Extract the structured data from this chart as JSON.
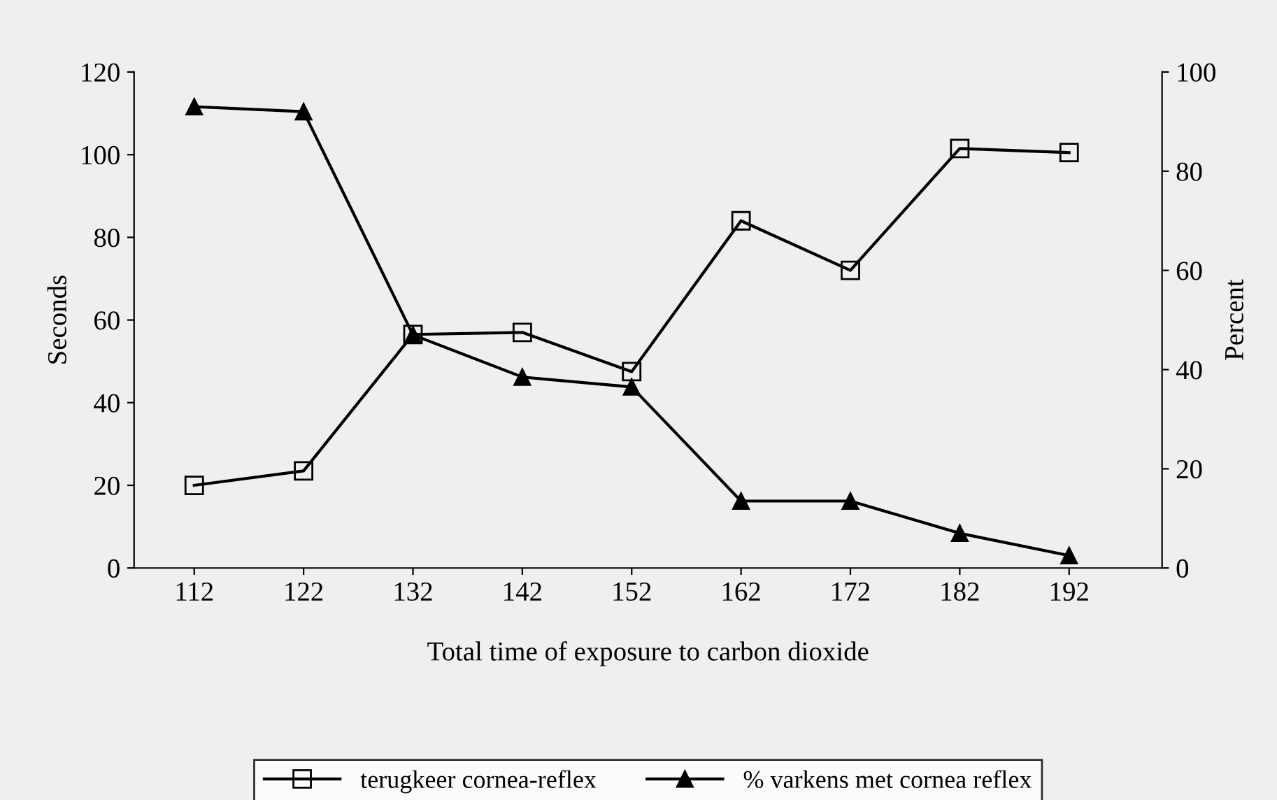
{
  "chart_data": {
    "type": "line",
    "xlabel": "Total time of exposure to carbon dioxide",
    "ylabel": "Seconds",
    "y2label": "Percent",
    "categories": [
      "112",
      "122",
      "132",
      "142",
      "152",
      "162",
      "172",
      "182",
      "192"
    ],
    "series": [
      {
        "name": "terugkeer cornea-reflex",
        "color": "#000000",
        "marker": "square",
        "values": [
          20,
          23.5,
          56.5,
          57,
          47.5,
          84,
          72,
          101.5,
          100.5
        ]
      },
      {
        "name": "% varkens met cornea reflex",
        "color": "#000000",
        "marker": "triangle",
        "axis": "y2",
        "values": [
          93,
          92,
          47,
          38.5,
          36.5,
          13.5,
          13.5,
          7,
          2.5
        ]
      }
    ],
    "ylim": [
      0,
      120
    ],
    "yticks": [
      0,
      20,
      40,
      60,
      80,
      100,
      120
    ],
    "y2lim": [
      0,
      100
    ],
    "y2ticks": [
      0,
      20,
      40,
      60,
      80,
      100
    ],
    "grid": false,
    "legend": "bottom",
    "line_style": "solid"
  }
}
